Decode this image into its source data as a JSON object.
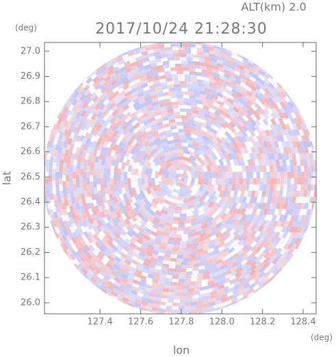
{
  "chart_data": {
    "type": "ppi",
    "title": "2017/10/24 21:28:30",
    "altitude_label": "ALT(km) 2.0",
    "x_label": "lon",
    "y_label": "lat",
    "x_unit": "(deg)",
    "y_unit": "(deg)",
    "xlim": [
      127.127,
      128.464
    ],
    "ylim": [
      25.956,
      27.035
    ],
    "xticks": [
      127.4,
      127.6,
      127.8,
      {
        "value": 128,
        "label": "128.0"
      },
      128.2,
      128.4
    ],
    "yticks": [
      {
        "value": 26,
        "label": "26.0"
      },
      26.1,
      26.2,
      26.3,
      26.4,
      26.5,
      26.6,
      26.7,
      26.8,
      26.9,
      {
        "value": 27,
        "label": "27.0"
      }
    ]
  }
}
